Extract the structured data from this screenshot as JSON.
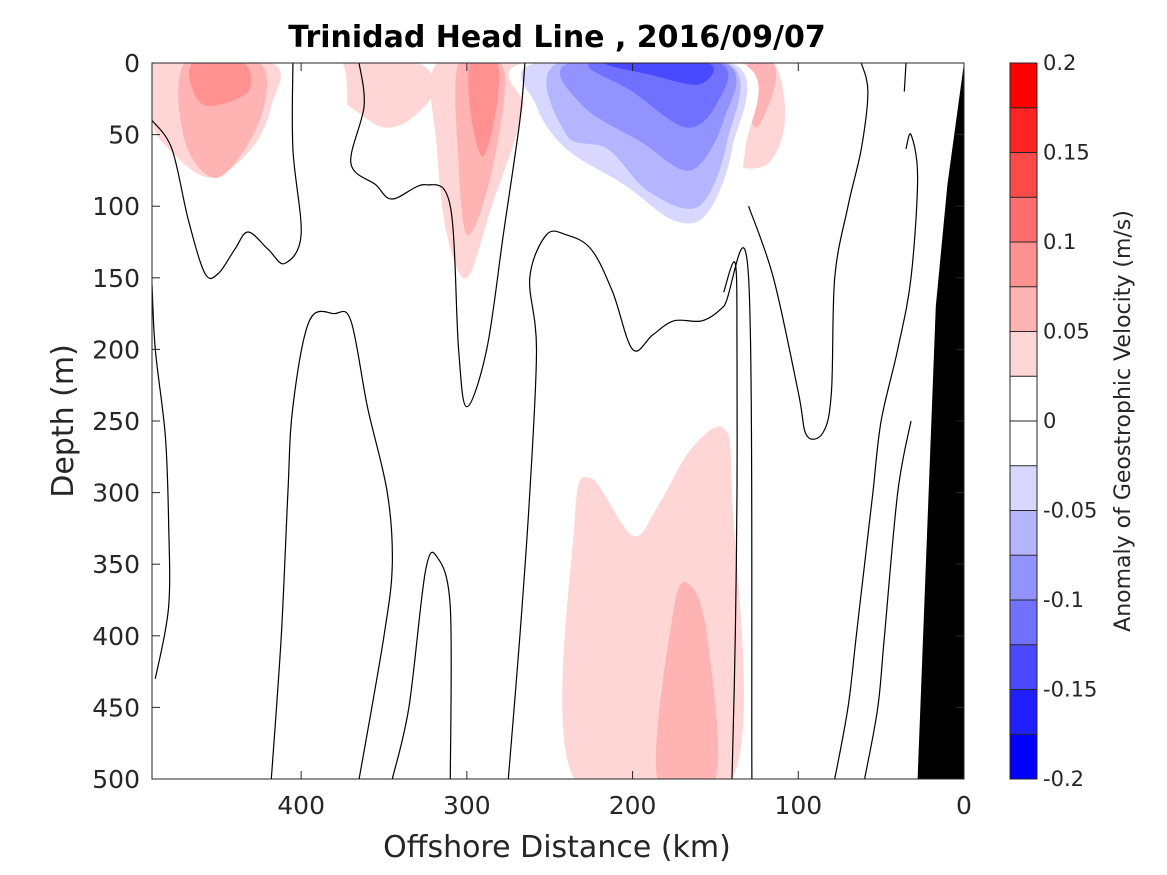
{
  "chart_data": {
    "type": "heatmap",
    "title": "Trinidad Head Line , 2016/09/07",
    "xlabel": "Offshore Distance (km)",
    "ylabel": "Depth (m)",
    "xlim": [
      490,
      0
    ],
    "ylim": [
      0,
      500
    ],
    "x_reversed": true,
    "y_reversed": true,
    "xticks": [
      400,
      300,
      200,
      100,
      0
    ],
    "yticks": [
      0,
      50,
      100,
      150,
      200,
      250,
      300,
      350,
      400,
      450,
      500
    ],
    "colorbar": {
      "label": "Anomaly of Geostrophic Velocity (m/s)",
      "range": [
        -0.2,
        0.2
      ],
      "step": 0.025,
      "ticks": [
        -0.2,
        -0.15,
        -0.1,
        -0.05,
        0,
        0.05,
        0.1,
        0.15,
        0.2
      ],
      "tick_labels": [
        "-0.2",
        "-0.15",
        "-0.1",
        "-0.05",
        "0",
        "0.05",
        "0.1",
        "0.15",
        "0.2"
      ],
      "colors_negative_to_positive": [
        "#0000ff",
        "#2020ff",
        "#4949ff",
        "#7171ff",
        "#9393ff",
        "#b4b4ff",
        "#d7d7ff",
        "#ffffff",
        "#ffffff",
        "#ffd6d6",
        "#ffb3b3",
        "#ff9191",
        "#ff6e6e",
        "#ff4a4a",
        "#ff2424",
        "#ff0000"
      ]
    },
    "filled_regions": [
      {
        "level": 0.025,
        "polygon": [
          [
            490,
            0
          ],
          [
            418,
            0
          ],
          [
            418,
            30
          ],
          [
            430,
            60
          ],
          [
            455,
            80
          ],
          [
            480,
            60
          ],
          [
            490,
            40
          ]
        ]
      },
      {
        "level": 0.05,
        "polygon": [
          [
            470,
            0
          ],
          [
            425,
            0
          ],
          [
            425,
            40
          ],
          [
            450,
            80
          ],
          [
            470,
            55
          ]
        ]
      },
      {
        "level": 0.075,
        "polygon": [
          [
            465,
            0
          ],
          [
            435,
            0
          ],
          [
            432,
            20
          ],
          [
            455,
            30
          ],
          [
            465,
            20
          ]
        ]
      },
      {
        "level": 0.025,
        "polygon": [
          [
            380,
            0
          ],
          [
            330,
            0
          ],
          [
            320,
            20
          ],
          [
            335,
            40
          ],
          [
            350,
            45
          ],
          [
            365,
            35
          ],
          [
            380,
            20
          ]
        ]
      },
      {
        "level": 0.025,
        "polygon": [
          [
            318,
            0
          ],
          [
            268,
            0
          ],
          [
            268,
            40
          ],
          [
            285,
            100
          ],
          [
            300,
            150
          ],
          [
            312,
            120
          ],
          [
            318,
            60
          ]
        ]
      },
      {
        "level": 0.05,
        "polygon": [
          [
            305,
            0
          ],
          [
            280,
            0
          ],
          [
            278,
            30
          ],
          [
            288,
            90
          ],
          [
            300,
            120
          ],
          [
            305,
            70
          ]
        ]
      },
      {
        "level": 0.075,
        "polygon": [
          [
            298,
            0
          ],
          [
            282,
            0
          ],
          [
            282,
            30
          ],
          [
            290,
            65
          ],
          [
            297,
            40
          ]
        ]
      },
      {
        "level": 0.025,
        "polygon": [
          [
            142,
            0
          ],
          [
            115,
            0
          ],
          [
            108,
            40
          ],
          [
            118,
            70
          ],
          [
            138,
            70
          ],
          [
            142,
            40
          ]
        ]
      },
      {
        "level": 0.05,
        "polygon": [
          [
            130,
            0
          ],
          [
            115,
            0
          ],
          [
            115,
            20
          ],
          [
            125,
            45
          ],
          [
            130,
            30
          ]
        ]
      },
      {
        "level": -0.025,
        "polygon": [
          [
            265,
            0
          ],
          [
            135,
            0
          ],
          [
            132,
            60
          ],
          [
            145,
            120
          ],
          [
            170,
            135
          ],
          [
            215,
            115
          ],
          [
            240,
            100
          ],
          [
            258,
            60
          ],
          [
            265,
            30
          ]
        ]
      },
      {
        "level": -0.05,
        "polygon": [
          [
            258,
            0
          ],
          [
            140,
            0
          ],
          [
            140,
            60
          ],
          [
            155,
            105
          ],
          [
            175,
            110
          ],
          [
            205,
            85
          ],
          [
            240,
            60
          ],
          [
            258,
            30
          ]
        ]
      },
      {
        "level": -0.075,
        "polygon": [
          [
            245,
            0
          ],
          [
            143,
            0
          ],
          [
            143,
            55
          ],
          [
            160,
            100
          ],
          [
            190,
            90
          ],
          [
            215,
            60
          ],
          [
            240,
            50
          ]
        ]
      },
      {
        "level": -0.1,
        "polygon": [
          [
            238,
            0
          ],
          [
            145,
            0
          ],
          [
            145,
            40
          ],
          [
            165,
            75
          ],
          [
            195,
            55
          ],
          [
            230,
            30
          ]
        ]
      },
      {
        "level": -0.125,
        "polygon": [
          [
            225,
            0
          ],
          [
            148,
            0
          ],
          [
            150,
            30
          ],
          [
            168,
            45
          ],
          [
            200,
            20
          ]
        ]
      },
      {
        "level": -0.15,
        "polygon": [
          [
            215,
            0
          ],
          [
            155,
            0
          ],
          [
            160,
            15
          ],
          [
            190,
            8
          ]
        ]
      },
      {
        "level": -0.025,
        "polygon": [
          [
            400,
            0
          ],
          [
            375,
            0
          ],
          [
            373,
            60
          ],
          [
            378,
            120
          ],
          [
            385,
            125
          ],
          [
            395,
            100
          ],
          [
            400,
            40
          ]
        ]
      },
      {
        "level": -0.025,
        "polygon": [
          [
            310,
            250
          ],
          [
            290,
            250
          ],
          [
            285,
            300
          ],
          [
            285,
            500
          ],
          [
            310,
            500
          ]
        ]
      },
      {
        "level": 0.025,
        "polygon": [
          [
            235,
            500
          ],
          [
            235,
            320
          ],
          [
            225,
            290
          ],
          [
            200,
            330
          ],
          [
            185,
            310
          ],
          [
            165,
            270
          ],
          [
            145,
            255
          ],
          [
            140,
            300
          ],
          [
            140,
            500
          ]
        ]
      },
      {
        "level": 0.05,
        "polygon": [
          [
            185,
            500
          ],
          [
            175,
            380
          ],
          [
            165,
            365
          ],
          [
            155,
            400
          ],
          [
            150,
            500
          ]
        ]
      },
      {
        "level": -0.025,
        "polygon": [
          [
            460,
            350
          ],
          [
            453,
            370
          ],
          [
            455,
            440
          ],
          [
            460,
            460
          ],
          [
            465,
            430
          ],
          [
            465,
            380
          ]
        ]
      },
      {
        "level": -0.025,
        "polygon": [
          [
            92,
            450
          ],
          [
            85,
            470
          ],
          [
            85,
            500
          ],
          [
            95,
            500
          ]
        ]
      }
    ],
    "zero_contours": [
      [
        [
          490,
          40
        ],
        [
          478,
          60
        ],
        [
          468,
          110
        ],
        [
          458,
          147
        ],
        [
          450,
          147
        ],
        [
          440,
          130
        ],
        [
          432,
          118
        ],
        [
          420,
          130
        ],
        [
          410,
          140
        ],
        [
          400,
          120
        ],
        [
          405,
          60
        ],
        [
          405,
          0
        ]
      ],
      [
        [
          365,
          0
        ],
        [
          362,
          30
        ],
        [
          370,
          70
        ],
        [
          355,
          85
        ],
        [
          345,
          95
        ],
        [
          325,
          85
        ],
        [
          310,
          100
        ],
        [
          305,
          200
        ],
        [
          300,
          240
        ],
        [
          288,
          200
        ],
        [
          278,
          120
        ],
        [
          268,
          40
        ],
        [
          265,
          0
        ]
      ],
      [
        [
          490,
          155
        ],
        [
          488,
          200
        ],
        [
          482,
          260
        ],
        [
          480,
          320
        ],
        [
          480,
          380
        ],
        [
          488,
          430
        ]
      ],
      [
        [
          418,
          500
        ],
        [
          412,
          400
        ],
        [
          408,
          300
        ],
        [
          405,
          240
        ],
        [
          395,
          180
        ],
        [
          380,
          175
        ],
        [
          370,
          180
        ],
        [
          360,
          240
        ],
        [
          348,
          300
        ],
        [
          345,
          350
        ],
        [
          350,
          400
        ],
        [
          365,
          500
        ]
      ],
      [
        [
          345,
          500
        ],
        [
          335,
          450
        ],
        [
          325,
          355
        ],
        [
          318,
          345
        ],
        [
          310,
          380
        ],
        [
          310,
          500
        ]
      ],
      [
        [
          275,
          500
        ],
        [
          268,
          400
        ],
        [
          262,
          300
        ],
        [
          258,
          200
        ],
        [
          262,
          150
        ],
        [
          252,
          120
        ],
        [
          240,
          120
        ],
        [
          225,
          130
        ],
        [
          212,
          160
        ],
        [
          200,
          200
        ],
        [
          188,
          190
        ],
        [
          175,
          180
        ],
        [
          158,
          180
        ],
        [
          145,
          170
        ],
        [
          130,
          150
        ],
        [
          128,
          500
        ]
      ],
      [
        [
          140,
          500
        ],
        [
          138,
          400
        ],
        [
          137,
          300
        ],
        [
          137,
          200
        ],
        [
          138,
          140
        ],
        [
          145,
          160
        ]
      ],
      [
        [
          130,
          100
        ],
        [
          115,
          150
        ],
        [
          100,
          230
        ],
        [
          95,
          260
        ],
        [
          85,
          258
        ],
        [
          80,
          230
        ],
        [
          78,
          150
        ],
        [
          70,
          100
        ],
        [
          62,
          60
        ],
        [
          58,
          20
        ],
        [
          62,
          0
        ]
      ],
      [
        [
          78,
          500
        ],
        [
          70,
          450
        ],
        [
          65,
          400
        ],
        [
          60,
          350
        ],
        [
          55,
          300
        ],
        [
          50,
          250
        ],
        [
          40,
          200
        ],
        [
          32,
          150
        ],
        [
          28,
          80
        ],
        [
          32,
          50
        ],
        [
          35,
          60
        ]
      ],
      [
        [
          60,
          500
        ],
        [
          52,
          450
        ],
        [
          48,
          400
        ],
        [
          40,
          300
        ],
        [
          32,
          250
        ]
      ],
      [
        [
          35,
          0
        ],
        [
          36,
          20
        ]
      ]
    ],
    "bathymetry_polygon": [
      [
        0,
        0
      ],
      [
        10,
        85
      ],
      [
        17,
        170
      ],
      [
        28,
        500
      ],
      [
        0,
        500
      ]
    ]
  }
}
